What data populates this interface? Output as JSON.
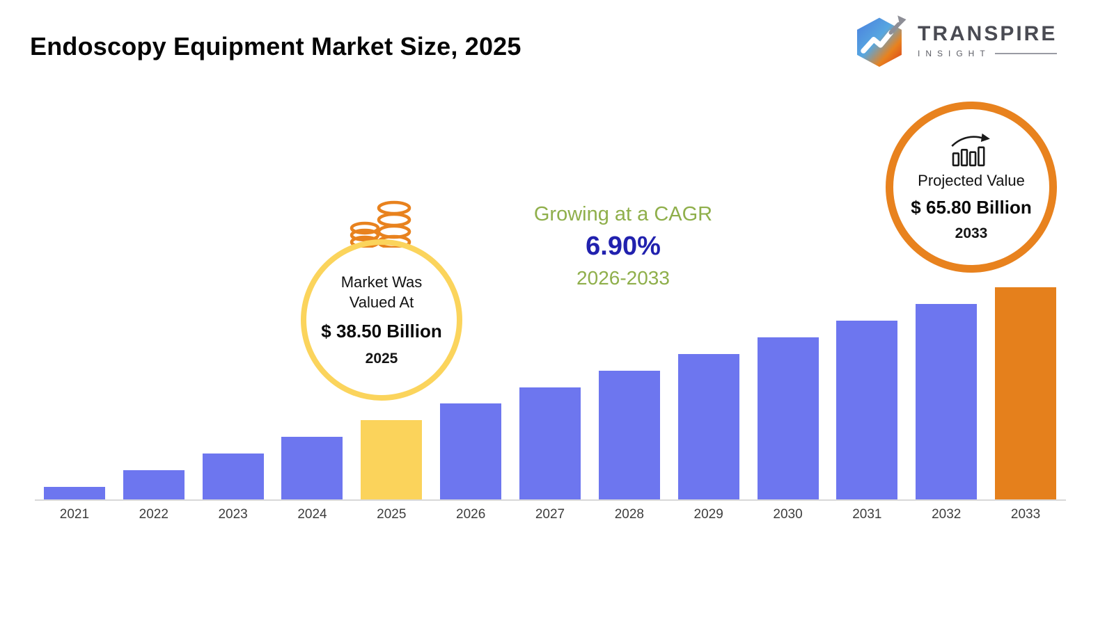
{
  "header": {
    "title": "Endoscopy Equipment Market Size, 2025",
    "logo": {
      "brand": "TRANSPIRE",
      "sub": "INSIGHT"
    }
  },
  "chart_data": {
    "type": "bar",
    "title": "Endoscopy Equipment Market Size, 2025",
    "unit": "USD Billion",
    "categories": [
      "2021",
      "2022",
      "2023",
      "2024",
      "2025",
      "2026",
      "2027",
      "2028",
      "2029",
      "2030",
      "2031",
      "2032",
      "2033"
    ],
    "values": [
      29.5,
      31.6,
      33.7,
      36.0,
      38.5,
      41.2,
      44.0,
      47.0,
      50.3,
      53.8,
      57.5,
      61.5,
      65.8
    ],
    "xlabel": "",
    "ylabel": "",
    "gridlines": false,
    "legend": false,
    "colors": {
      "default": "#6D76EF",
      "by_year": {
        "2025": "#FBD35B",
        "2033": "#E5801C"
      },
      "axis_line": "#D8D8D8",
      "tick_label": "#3D3D3D"
    },
    "notes": "2025 (38.50) and 2033 (65.80) are labeled on the infographic; other values estimated from the 6.90% CAGR"
  },
  "annotations": {
    "valuation": {
      "icon": "coins-icon",
      "line1": "Market Was",
      "line2": "Valued At",
      "value": "$ 38.50 Billion",
      "year": "2025",
      "circle_color": "#FBD45C",
      "icon_color": "#E8821E"
    },
    "cagr": {
      "line1": "Growing at a CAGR",
      "value": "6.90%",
      "period": "2026-2033",
      "green": "#8FAF4B",
      "blue": "#2121AE"
    },
    "projection": {
      "icon": "bar-chart-growth-icon",
      "label": "Projected Value",
      "value": "$ 65.80 Billion",
      "year": "2033",
      "circle_color": "#E8821E",
      "icon_color": "#1A1A1A"
    }
  }
}
